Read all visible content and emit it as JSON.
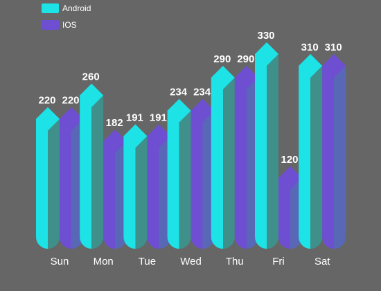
{
  "chart_data": {
    "type": "bar",
    "categories": [
      "Sun",
      "Mon",
      "Tue",
      "Wed",
      "Thu",
      "Fri",
      "Sat"
    ],
    "series": [
      {
        "name": "Android",
        "values": [
          220,
          260,
          191,
          234,
          290,
          330,
          310
        ],
        "color": "#1de2e6"
      },
      {
        "name": "IOS",
        "values": [
          220,
          182,
          191,
          234,
          290,
          120,
          310
        ],
        "color": "#6e4fd2"
      }
    ],
    "ylim": [
      0,
      330
    ],
    "grid": false,
    "legend_position": "top-left"
  }
}
